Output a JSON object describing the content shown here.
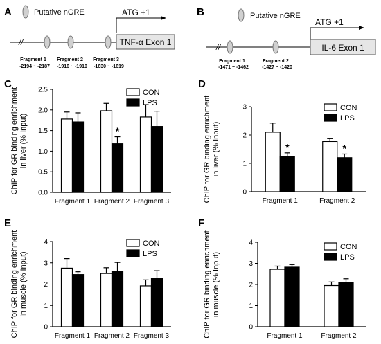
{
  "panels": {
    "A": {
      "letter": "A",
      "nGRE_label": "Putative nGRE",
      "atg_label": "ATG +1",
      "exon_label": "TNF-α Exon 1",
      "fragments": [
        {
          "name": "Fragment 1",
          "range": "-2194 ~ -2187"
        },
        {
          "name": "Fragment 2",
          "range": "-1916 ~ -1910"
        },
        {
          "name": "Fragment 3",
          "range": "-1630 ~ -1619"
        }
      ]
    },
    "B": {
      "letter": "B",
      "nGRE_label": "Putative nGRE",
      "atg_label": "ATG +1",
      "exon_label": "IL-6 Exon 1",
      "fragments": [
        {
          "name": "Fragment 1",
          "range": "-1471 ~ -1462"
        },
        {
          "name": "Fragment 2",
          "range": "-1427 ~ -1420"
        }
      ]
    }
  },
  "colors": {
    "con": "#ffffff",
    "lps": "#000000",
    "stroke": "#000000"
  },
  "chart_data": [
    {
      "panel": "C",
      "type": "bar",
      "ylabel": "ChIP for GR binding enrichment in liver (% Input)",
      "ylim": [
        0,
        2.5
      ],
      "yticks": [
        "0.0",
        "0.5",
        "1.0",
        "1.5",
        "2.0",
        "2.5"
      ],
      "categories": [
        "Fragment 1",
        "Fragment 2",
        "Fragment 3"
      ],
      "series": [
        {
          "name": "CON",
          "values": [
            1.78,
            1.98,
            1.83
          ],
          "errors": [
            0.17,
            0.18,
            0.3
          ]
        },
        {
          "name": "LPS",
          "values": [
            1.71,
            1.18,
            1.6
          ],
          "errors": [
            0.22,
            0.17,
            0.37
          ]
        }
      ],
      "significance": [
        {
          "category": 1,
          "series": 1,
          "mark": "*"
        }
      ],
      "legend": "top-right"
    },
    {
      "panel": "D",
      "type": "bar",
      "ylabel": "ChIP for GR binding enrichment in liver (% Input)",
      "ylim": [
        0,
        3
      ],
      "yticks": [
        "0",
        "1",
        "2",
        "3"
      ],
      "categories": [
        "Fragment 1",
        "Fragment 2"
      ],
      "series": [
        {
          "name": "CON",
          "values": [
            2.1,
            1.77
          ],
          "errors": [
            0.32,
            0.1
          ]
        },
        {
          "name": "LPS",
          "values": [
            1.25,
            1.2
          ],
          "errors": [
            0.12,
            0.13
          ]
        }
      ],
      "significance": [
        {
          "category": 0,
          "series": 1,
          "mark": "*"
        },
        {
          "category": 1,
          "series": 1,
          "mark": "*"
        }
      ],
      "legend": "top-right"
    },
    {
      "panel": "E",
      "type": "bar",
      "ylabel": "ChIP for GR binding enrichment in muscle (% Input)",
      "ylim": [
        0,
        4
      ],
      "yticks": [
        "0",
        "1",
        "2",
        "3",
        "4"
      ],
      "categories": [
        "Fragment 1",
        "Fragment 2",
        "Fragment 3"
      ],
      "series": [
        {
          "name": "CON",
          "values": [
            2.75,
            2.5,
            1.92
          ],
          "errors": [
            0.45,
            0.27,
            0.28
          ]
        },
        {
          "name": "LPS",
          "values": [
            2.45,
            2.6,
            2.28
          ],
          "errors": [
            0.13,
            0.42,
            0.35
          ]
        }
      ],
      "significance": [],
      "legend": "top-right"
    },
    {
      "panel": "F",
      "type": "bar",
      "ylabel": "ChIP for GR binding enrichment in muscle (% Input)",
      "ylim": [
        0,
        4
      ],
      "yticks": [
        "0",
        "1",
        "2",
        "3",
        "4"
      ],
      "categories": [
        "Fragment 1",
        "Fragment 2"
      ],
      "series": [
        {
          "name": "CON",
          "values": [
            2.72,
            1.95
          ],
          "errors": [
            0.15,
            0.17
          ]
        },
        {
          "name": "LPS",
          "values": [
            2.82,
            2.1
          ],
          "errors": [
            0.12,
            0.17
          ]
        }
      ],
      "significance": [],
      "legend": "top-right"
    }
  ]
}
